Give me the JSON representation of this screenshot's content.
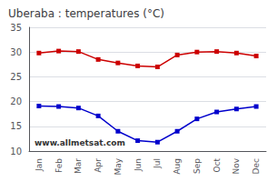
{
  "chart_data": {
    "type": "line",
    "title": "Uberaba : temperatures (°C)",
    "categories": [
      "Jan",
      "Feb",
      "Mar",
      "Apr",
      "May",
      "Jun",
      "Jul",
      "Aug",
      "Sep",
      "Oct",
      "Nov",
      "Dec"
    ],
    "series": [
      {
        "color": "#cc0000",
        "values": [
          29.8,
          30.2,
          30.1,
          28.5,
          27.8,
          27.2,
          27.0,
          29.4,
          30.0,
          30.1,
          29.8,
          29.2
        ]
      },
      {
        "color": "#0000cc",
        "values": [
          19.1,
          19.0,
          18.7,
          17.1,
          14.0,
          12.1,
          11.8,
          14.0,
          16.5,
          17.9,
          18.5,
          19.0
        ]
      }
    ],
    "marker": "square",
    "ylim": [
      10,
      35
    ],
    "yticks": [
      10,
      15,
      20,
      25,
      30,
      35
    ],
    "grid": true,
    "annotations": [
      "www.allmetsat.com"
    ]
  }
}
